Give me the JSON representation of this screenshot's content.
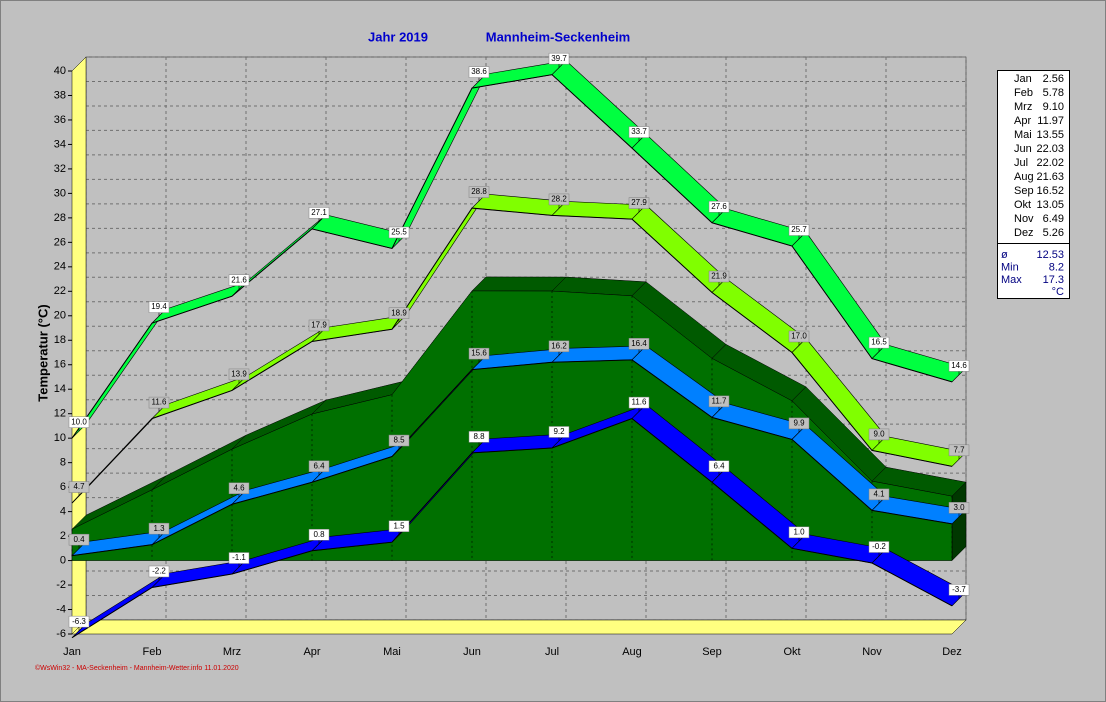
{
  "chart_data": {
    "type": "line",
    "title": "Jahr  2019",
    "subtitle": "Mannheim-Seckenheim",
    "y_label": "Temperatur  (°C)",
    "categories": [
      "Jan",
      "Feb",
      "Mrz",
      "Apr",
      "Mai",
      "Jun",
      "Jul",
      "Aug",
      "Sep",
      "Okt",
      "Nov",
      "Dez"
    ],
    "ylim": [
      -6,
      40
    ],
    "yticks": [
      -6,
      -4,
      -2,
      0,
      2,
      4,
      6,
      8,
      10,
      12,
      14,
      16,
      18,
      20,
      22,
      24,
      26,
      28,
      30,
      32,
      34,
      36,
      38,
      40
    ],
    "grid": true,
    "series": [
      {
        "kind": "area",
        "color": "#007000",
        "values": [
          2.56,
          5.78,
          9.1,
          11.97,
          13.55,
          22.03,
          22.02,
          21.63,
          16.52,
          13.05,
          6.49,
          5.26
        ]
      },
      {
        "color": "#0080ff",
        "values": [
          0.4,
          1.3,
          4.6,
          6.4,
          8.5,
          15.6,
          16.2,
          16.4,
          11.7,
          9.9,
          4.1,
          3.0
        ],
        "value_labels": [
          "0.4",
          "1.3",
          "4.6",
          "6.4",
          "8.5",
          "15.6",
          "16.2",
          "16.4",
          "11.7",
          "9.9",
          "4.1",
          "3.0"
        ],
        "label_bg": "#c0c0c0"
      },
      {
        "color": "#0000ff",
        "values": [
          -6.3,
          -2.2,
          -1.1,
          0.8,
          1.5,
          8.8,
          9.2,
          11.6,
          6.4,
          1.0,
          -0.2,
          -3.7
        ],
        "value_labels": [
          "-6.3",
          "-2.2",
          "-1.1",
          "0.8",
          "1.5",
          "8.8",
          "9.2",
          "11.6",
          "6.4",
          "1.0",
          "-0.2",
          "-3.7"
        ],
        "label_bg": "#ffffff"
      },
      {
        "color": "#80ff00",
        "values": [
          4.7,
          11.6,
          13.9,
          17.9,
          18.9,
          28.8,
          28.2,
          27.9,
          21.9,
          17.0,
          9.0,
          7.7
        ],
        "value_labels": [
          "4.7",
          "11.6",
          "13.9",
          "17.9",
          "18.9",
          "28.8",
          "28.2",
          "27.9",
          "21.9",
          "17.0",
          "9.0",
          "7.7"
        ],
        "label_bg": "#c0c0c0"
      },
      {
        "color": "#00ff40",
        "values": [
          10.0,
          19.4,
          21.6,
          27.1,
          25.5,
          38.6,
          39.7,
          33.7,
          27.6,
          25.7,
          16.5,
          14.6
        ],
        "value_labels": [
          "10.0",
          "19.4",
          "21.6",
          "27.1",
          "25.5",
          "38.6",
          "39.7",
          "33.7",
          "27.6",
          "25.7",
          "16.5",
          "14.6"
        ],
        "label_bg": "#ffffff"
      }
    ]
  },
  "footer": "©WsWin32 - MA-Seckenheim - Mannheim-Wetter.info 11.01.2020",
  "table": {
    "rows": [
      [
        "Jan",
        "2.56"
      ],
      [
        "Feb",
        "5.78"
      ],
      [
        "Mrz",
        "9.10"
      ],
      [
        "Apr",
        "11.97"
      ],
      [
        "Mai",
        "13.55"
      ],
      [
        "Jun",
        "22.03"
      ],
      [
        "Jul",
        "22.02"
      ],
      [
        "Aug",
        "21.63"
      ],
      [
        "Sep",
        "16.52"
      ],
      [
        "Okt",
        "13.05"
      ],
      [
        "Nov",
        "6.49"
      ],
      [
        "Dez",
        "5.26"
      ]
    ],
    "stats": [
      [
        "ø",
        "12.53"
      ],
      [
        "Min",
        "8.2"
      ],
      [
        "Max",
        "17.3"
      ]
    ],
    "unit": "°C"
  }
}
